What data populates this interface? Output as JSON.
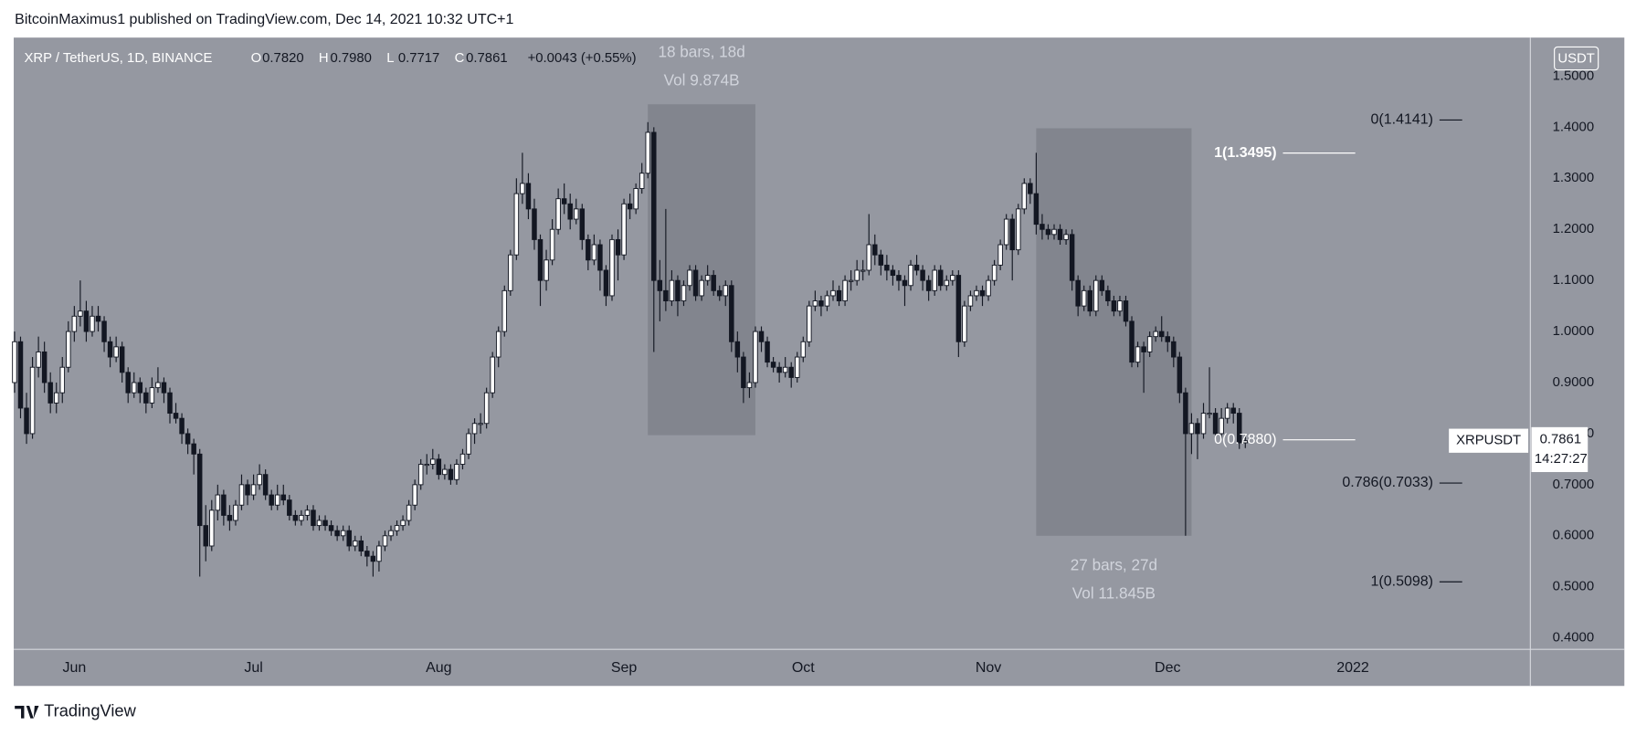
{
  "header": {
    "published": "BitcoinMaximus1 published on TradingView.com, Dec 14, 2021 10:32 UTC+1"
  },
  "footer": {
    "brand": "TradingView"
  },
  "chart_data": {
    "type": "candlestick",
    "symbol": "XRP / TetherUS, 1D, BINANCE",
    "ohlc_legend": [
      {
        "key": "O",
        "value": "0.7820"
      },
      {
        "key": "H",
        "value": "0.7980"
      },
      {
        "key": "L",
        "value": "0.7717"
      },
      {
        "key": "C",
        "value": "0.7861"
      }
    ],
    "change": "+0.0043 (+0.55%)",
    "currency": "USDT",
    "up_color": "#ffffff",
    "down_color": "#131722",
    "background": "#9598a1",
    "grid": false,
    "xlim": [
      -0.14,
      253.71
    ],
    "xticks": [
      {
        "value": 10,
        "label": "Jun"
      },
      {
        "value": 40,
        "label": "Jul"
      },
      {
        "value": 71,
        "label": "Aug"
      },
      {
        "value": 102,
        "label": "Sep"
      },
      {
        "value": 132,
        "label": "Oct"
      },
      {
        "value": 163,
        "label": "Nov"
      },
      {
        "value": 193,
        "label": "Dec"
      },
      {
        "value": 224,
        "label": "2022"
      }
    ],
    "ylim": [
      0.3775,
      1.5756
    ],
    "yticks": [
      {
        "value": 0.4,
        "label": "0.4000"
      },
      {
        "value": 0.5,
        "label": "0.5000"
      },
      {
        "value": 0.6,
        "label": "0.6000"
      },
      {
        "value": 0.7,
        "label": "0.7000"
      },
      {
        "value": 0.8,
        "label": "0.8000"
      },
      {
        "value": 0.9,
        "label": "0.9000"
      },
      {
        "value": 1.0,
        "label": "1.0000"
      },
      {
        "value": 1.1,
        "label": "1.1000"
      },
      {
        "value": 1.2,
        "label": "1.2000"
      },
      {
        "value": 1.3,
        "label": "1.3000"
      },
      {
        "value": 1.4,
        "label": "1.4000"
      },
      {
        "value": 1.5,
        "label": "1.5000"
      }
    ],
    "ohlc": [
      [
        0.9,
        1.0,
        0.88,
        0.98
      ],
      [
        0.98,
        0.99,
        0.83,
        0.85
      ],
      [
        0.85,
        0.88,
        0.78,
        0.8
      ],
      [
        0.8,
        0.95,
        0.79,
        0.93
      ],
      [
        0.93,
        0.99,
        0.91,
        0.96
      ],
      [
        0.96,
        0.98,
        0.88,
        0.9
      ],
      [
        0.9,
        0.92,
        0.84,
        0.86
      ],
      [
        0.86,
        0.9,
        0.84,
        0.88
      ],
      [
        0.88,
        0.95,
        0.86,
        0.93
      ],
      [
        0.93,
        1.02,
        0.92,
        1.0
      ],
      [
        1.0,
        1.05,
        0.98,
        1.03
      ],
      [
        1.03,
        1.1,
        1.01,
        1.04
      ],
      [
        1.04,
        1.06,
        0.98,
        1.0
      ],
      [
        1.0,
        1.05,
        0.99,
        1.03
      ],
      [
        1.03,
        1.05,
        1.0,
        1.02
      ],
      [
        1.02,
        1.03,
        0.96,
        0.98
      ],
      [
        0.98,
        0.99,
        0.93,
        0.95
      ],
      [
        0.95,
        0.99,
        0.94,
        0.97
      ],
      [
        0.97,
        0.98,
        0.9,
        0.92
      ],
      [
        0.92,
        0.93,
        0.86,
        0.88
      ],
      [
        0.88,
        0.92,
        0.87,
        0.9
      ],
      [
        0.9,
        0.91,
        0.86,
        0.88
      ],
      [
        0.88,
        0.89,
        0.84,
        0.86
      ],
      [
        0.86,
        0.91,
        0.85,
        0.89
      ],
      [
        0.89,
        0.93,
        0.88,
        0.9
      ],
      [
        0.9,
        0.91,
        0.86,
        0.88
      ],
      [
        0.88,
        0.89,
        0.82,
        0.84
      ],
      [
        0.84,
        0.86,
        0.82,
        0.83
      ],
      [
        0.83,
        0.84,
        0.78,
        0.8
      ],
      [
        0.8,
        0.81,
        0.76,
        0.78
      ],
      [
        0.78,
        0.79,
        0.72,
        0.76
      ],
      [
        0.76,
        0.77,
        0.52,
        0.62
      ],
      [
        0.62,
        0.66,
        0.55,
        0.58
      ],
      [
        0.58,
        0.67,
        0.57,
        0.65
      ],
      [
        0.65,
        0.7,
        0.63,
        0.68
      ],
      [
        0.68,
        0.69,
        0.62,
        0.64
      ],
      [
        0.64,
        0.66,
        0.61,
        0.63
      ],
      [
        0.63,
        0.67,
        0.62,
        0.66
      ],
      [
        0.66,
        0.72,
        0.65,
        0.7
      ],
      [
        0.7,
        0.71,
        0.66,
        0.68
      ],
      [
        0.68,
        0.72,
        0.67,
        0.7
      ],
      [
        0.7,
        0.74,
        0.69,
        0.72
      ],
      [
        0.72,
        0.73,
        0.67,
        0.68
      ],
      [
        0.68,
        0.69,
        0.65,
        0.66
      ],
      [
        0.66,
        0.7,
        0.65,
        0.68
      ],
      [
        0.68,
        0.7,
        0.66,
        0.67
      ],
      [
        0.67,
        0.68,
        0.63,
        0.64
      ],
      [
        0.64,
        0.65,
        0.62,
        0.63
      ],
      [
        0.63,
        0.65,
        0.62,
        0.64
      ],
      [
        0.64,
        0.66,
        0.63,
        0.65
      ],
      [
        0.65,
        0.66,
        0.61,
        0.62
      ],
      [
        0.62,
        0.64,
        0.61,
        0.63
      ],
      [
        0.63,
        0.64,
        0.61,
        0.62
      ],
      [
        0.62,
        0.63,
        0.6,
        0.61
      ],
      [
        0.61,
        0.62,
        0.59,
        0.6
      ],
      [
        0.6,
        0.62,
        0.59,
        0.61
      ],
      [
        0.61,
        0.62,
        0.57,
        0.58
      ],
      [
        0.58,
        0.6,
        0.57,
        0.59
      ],
      [
        0.59,
        0.6,
        0.56,
        0.57
      ],
      [
        0.57,
        0.58,
        0.54,
        0.56
      ],
      [
        0.56,
        0.57,
        0.52,
        0.55
      ],
      [
        0.55,
        0.59,
        0.53,
        0.58
      ],
      [
        0.58,
        0.61,
        0.57,
        0.6
      ],
      [
        0.6,
        0.62,
        0.59,
        0.61
      ],
      [
        0.61,
        0.63,
        0.6,
        0.62
      ],
      [
        0.62,
        0.64,
        0.61,
        0.63
      ],
      [
        0.63,
        0.67,
        0.62,
        0.66
      ],
      [
        0.66,
        0.71,
        0.65,
        0.7
      ],
      [
        0.7,
        0.75,
        0.69,
        0.74
      ],
      [
        0.74,
        0.76,
        0.72,
        0.74
      ],
      [
        0.74,
        0.77,
        0.73,
        0.75
      ],
      [
        0.75,
        0.76,
        0.71,
        0.72
      ],
      [
        0.72,
        0.74,
        0.71,
        0.73
      ],
      [
        0.73,
        0.74,
        0.7,
        0.71
      ],
      [
        0.71,
        0.75,
        0.7,
        0.74
      ],
      [
        0.74,
        0.77,
        0.73,
        0.76
      ],
      [
        0.76,
        0.81,
        0.75,
        0.8
      ],
      [
        0.8,
        0.83,
        0.78,
        0.82
      ],
      [
        0.82,
        0.84,
        0.8,
        0.82
      ],
      [
        0.82,
        0.89,
        0.81,
        0.88
      ],
      [
        0.88,
        0.96,
        0.87,
        0.95
      ],
      [
        0.95,
        1.01,
        0.93,
        1.0
      ],
      [
        1.0,
        1.09,
        0.99,
        1.08
      ],
      [
        1.08,
        1.16,
        1.07,
        1.15
      ],
      [
        1.15,
        1.3,
        1.14,
        1.27
      ],
      [
        1.27,
        1.35,
        1.25,
        1.29
      ],
      [
        1.29,
        1.31,
        1.22,
        1.24
      ],
      [
        1.24,
        1.26,
        1.16,
        1.18
      ],
      [
        1.18,
        1.19,
        1.05,
        1.1
      ],
      [
        1.1,
        1.16,
        1.08,
        1.14
      ],
      [
        1.14,
        1.22,
        1.13,
        1.2
      ],
      [
        1.2,
        1.28,
        1.19,
        1.26
      ],
      [
        1.26,
        1.29,
        1.23,
        1.25
      ],
      [
        1.25,
        1.27,
        1.2,
        1.22
      ],
      [
        1.22,
        1.26,
        1.21,
        1.24
      ],
      [
        1.24,
        1.25,
        1.16,
        1.18
      ],
      [
        1.18,
        1.19,
        1.12,
        1.14
      ],
      [
        1.14,
        1.19,
        1.13,
        1.17
      ],
      [
        1.17,
        1.18,
        1.08,
        1.12
      ],
      [
        1.12,
        1.13,
        1.05,
        1.07
      ],
      [
        1.07,
        1.19,
        1.06,
        1.18
      ],
      [
        1.18,
        1.2,
        1.1,
        1.15
      ],
      [
        1.15,
        1.26,
        1.14,
        1.25
      ],
      [
        1.25,
        1.27,
        1.22,
        1.24
      ],
      [
        1.24,
        1.29,
        1.23,
        1.28
      ],
      [
        1.28,
        1.33,
        1.27,
        1.31
      ],
      [
        1.31,
        1.41,
        1.3,
        1.39
      ],
      [
        1.39,
        1.4,
        0.96,
        1.1
      ],
      [
        1.1,
        1.14,
        1.02,
        1.08
      ],
      [
        1.08,
        1.24,
        1.04,
        1.06
      ],
      [
        1.06,
        1.12,
        1.05,
        1.1
      ],
      [
        1.1,
        1.11,
        1.03,
        1.06
      ],
      [
        1.06,
        1.1,
        1.05,
        1.09
      ],
      [
        1.09,
        1.13,
        1.08,
        1.12
      ],
      [
        1.12,
        1.13,
        1.06,
        1.07
      ],
      [
        1.07,
        1.11,
        1.06,
        1.1
      ],
      [
        1.1,
        1.13,
        1.09,
        1.11
      ],
      [
        1.11,
        1.12,
        1.07,
        1.08
      ],
      [
        1.08,
        1.09,
        1.06,
        1.07
      ],
      [
        1.07,
        1.1,
        1.05,
        1.09
      ],
      [
        1.09,
        1.1,
        0.96,
        0.98
      ],
      [
        0.98,
        1.0,
        0.92,
        0.95
      ],
      [
        0.95,
        0.96,
        0.86,
        0.89
      ],
      [
        0.89,
        0.92,
        0.87,
        0.9
      ],
      [
        0.9,
        1.01,
        0.89,
        1.0
      ],
      [
        1.0,
        1.01,
        0.96,
        0.98
      ],
      [
        0.98,
        0.99,
        0.93,
        0.94
      ],
      [
        0.94,
        0.95,
        0.92,
        0.93
      ],
      [
        0.93,
        0.94,
        0.9,
        0.92
      ],
      [
        0.92,
        0.95,
        0.91,
        0.93
      ],
      [
        0.93,
        0.94,
        0.89,
        0.91
      ],
      [
        0.91,
        0.96,
        0.9,
        0.95
      ],
      [
        0.95,
        0.99,
        0.94,
        0.98
      ],
      [
        0.98,
        1.06,
        0.97,
        1.05
      ],
      [
        1.05,
        1.08,
        1.04,
        1.06
      ],
      [
        1.06,
        1.07,
        1.03,
        1.05
      ],
      [
        1.05,
        1.08,
        1.04,
        1.07
      ],
      [
        1.07,
        1.1,
        1.06,
        1.08
      ],
      [
        1.08,
        1.09,
        1.05,
        1.06
      ],
      [
        1.06,
        1.11,
        1.05,
        1.1
      ],
      [
        1.1,
        1.12,
        1.08,
        1.1
      ],
      [
        1.1,
        1.14,
        1.09,
        1.12
      ],
      [
        1.12,
        1.14,
        1.1,
        1.12
      ],
      [
        1.12,
        1.23,
        1.11,
        1.17
      ],
      [
        1.17,
        1.19,
        1.13,
        1.15
      ],
      [
        1.15,
        1.16,
        1.11,
        1.13
      ],
      [
        1.13,
        1.15,
        1.1,
        1.12
      ],
      [
        1.12,
        1.13,
        1.09,
        1.11
      ],
      [
        1.11,
        1.12,
        1.08,
        1.1
      ],
      [
        1.1,
        1.11,
        1.05,
        1.09
      ],
      [
        1.09,
        1.14,
        1.08,
        1.13
      ],
      [
        1.13,
        1.15,
        1.11,
        1.12
      ],
      [
        1.12,
        1.13,
        1.08,
        1.1
      ],
      [
        1.1,
        1.11,
        1.06,
        1.08
      ],
      [
        1.08,
        1.13,
        1.07,
        1.12
      ],
      [
        1.12,
        1.13,
        1.08,
        1.09
      ],
      [
        1.09,
        1.11,
        1.08,
        1.1
      ],
      [
        1.1,
        1.12,
        1.09,
        1.11
      ],
      [
        1.11,
        1.12,
        0.95,
        0.98
      ],
      [
        0.98,
        1.06,
        0.97,
        1.05
      ],
      [
        1.05,
        1.08,
        1.04,
        1.07
      ],
      [
        1.07,
        1.09,
        1.06,
        1.08
      ],
      [
        1.08,
        1.09,
        1.05,
        1.07
      ],
      [
        1.07,
        1.11,
        1.06,
        1.1
      ],
      [
        1.1,
        1.14,
        1.09,
        1.13
      ],
      [
        1.13,
        1.18,
        1.12,
        1.17
      ],
      [
        1.17,
        1.23,
        1.16,
        1.22
      ],
      [
        1.22,
        1.23,
        1.1,
        1.16
      ],
      [
        1.16,
        1.25,
        1.15,
        1.24
      ],
      [
        1.24,
        1.3,
        1.23,
        1.29
      ],
      [
        1.29,
        1.3,
        1.25,
        1.27
      ],
      [
        1.27,
        1.35,
        1.19,
        1.21
      ],
      [
        1.21,
        1.23,
        1.18,
        1.2
      ],
      [
        1.2,
        1.21,
        1.18,
        1.19
      ],
      [
        1.19,
        1.21,
        1.18,
        1.2
      ],
      [
        1.2,
        1.21,
        1.17,
        1.18
      ],
      [
        1.18,
        1.2,
        1.17,
        1.19
      ],
      [
        1.19,
        1.2,
        1.08,
        1.1
      ],
      [
        1.1,
        1.11,
        1.03,
        1.05
      ],
      [
        1.05,
        1.09,
        1.04,
        1.08
      ],
      [
        1.08,
        1.09,
        1.03,
        1.04
      ],
      [
        1.04,
        1.11,
        1.03,
        1.1
      ],
      [
        1.1,
        1.11,
        1.07,
        1.08
      ],
      [
        1.08,
        1.09,
        1.05,
        1.06
      ],
      [
        1.06,
        1.07,
        1.03,
        1.04
      ],
      [
        1.04,
        1.07,
        1.03,
        1.06
      ],
      [
        1.06,
        1.07,
        1.01,
        1.02
      ],
      [
        1.02,
        1.03,
        0.93,
        0.94
      ],
      [
        0.94,
        0.98,
        0.93,
        0.97
      ],
      [
        0.97,
        0.98,
        0.88,
        0.96
      ],
      [
        0.96,
        1.0,
        0.95,
        0.99
      ],
      [
        0.99,
        1.01,
        0.98,
        1.0
      ],
      [
        1.0,
        1.03,
        0.98,
        0.99
      ],
      [
        0.99,
        1.0,
        0.96,
        0.98
      ],
      [
        0.98,
        0.99,
        0.93,
        0.95
      ],
      [
        0.95,
        0.96,
        0.86,
        0.88
      ],
      [
        0.88,
        0.89,
        0.6,
        0.8
      ],
      [
        0.8,
        0.84,
        0.76,
        0.82
      ],
      [
        0.82,
        0.83,
        0.75,
        0.8
      ],
      [
        0.8,
        0.86,
        0.79,
        0.84
      ],
      [
        0.84,
        0.93,
        0.83,
        0.84
      ],
      [
        0.84,
        0.85,
        0.79,
        0.8
      ],
      [
        0.8,
        0.85,
        0.79,
        0.83
      ],
      [
        0.83,
        0.86,
        0.82,
        0.85
      ],
      [
        0.85,
        0.86,
        0.82,
        0.84
      ],
      [
        0.84,
        0.85,
        0.77,
        0.782
      ],
      [
        0.782,
        0.798,
        0.7717,
        0.7861
      ]
    ],
    "ranges": [
      {
        "bars": "18 bars, 18d",
        "volume": "Vol 9.874B",
        "x": [
          106,
          124
        ],
        "y": [
          0.797,
          1.445
        ],
        "label_side": "top"
      },
      {
        "bars": "27 bars, 27d",
        "volume": "Vol 11.845B",
        "x": [
          171,
          197
        ],
        "y": [
          0.6,
          1.398
        ],
        "label_side": "bottom"
      }
    ],
    "fib_levels": [
      {
        "label": "0(1.4141)",
        "value": 1.4141,
        "x": [
          238.5,
          242.3
        ],
        "color": "#131722",
        "bold": false
      },
      {
        "label": "1(1.3495)",
        "value": 1.3495,
        "x": [
          212.3,
          224.4
        ],
        "color": "#ffffff",
        "bold": true
      },
      {
        "label": "0(0.7880)",
        "value": 0.788,
        "x": [
          212.3,
          224.4
        ],
        "color": "#ffffff",
        "bold": false
      },
      {
        "label": "0.786(0.7033)",
        "value": 0.7033,
        "x": [
          238.5,
          242.3
        ],
        "color": "#131722",
        "bold": false
      },
      {
        "label": "1(0.5098)",
        "value": 0.5098,
        "x": [
          238.5,
          242.3
        ],
        "color": "#131722",
        "bold": false
      }
    ],
    "last_price": {
      "symbol": "XRPUSDT",
      "value": 0.7861,
      "countdown": "14:27:27"
    }
  }
}
